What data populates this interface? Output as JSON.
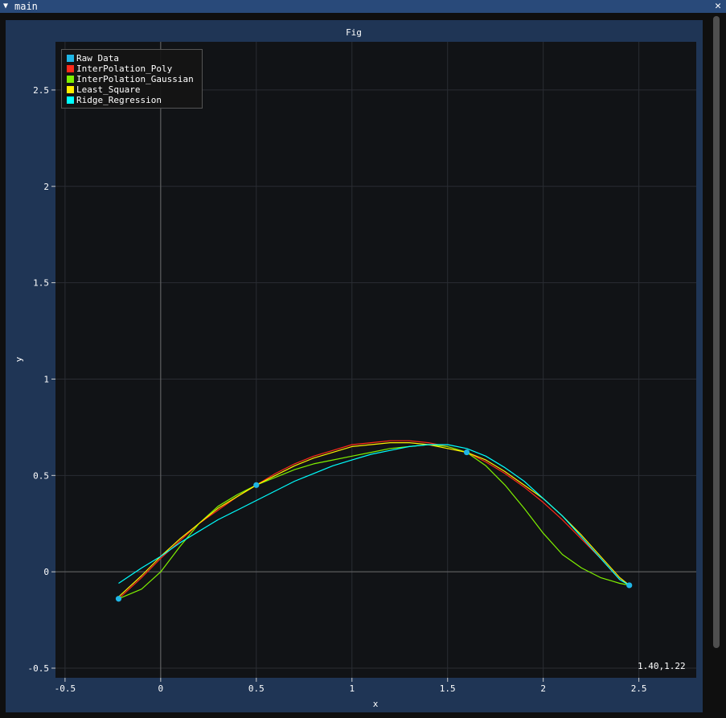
{
  "window": {
    "title": "main",
    "collapse_icon": "triangle-down-icon",
    "close_icon": "close-icon"
  },
  "mouse_readout": "1.40,1.22",
  "colors": {
    "raw_data": "#1fb6e6",
    "poly": "#ff2a1a",
    "gaussian": "#7ff000",
    "least_square": "#ffee00",
    "ridge": "#00ffff",
    "plot_bg": "#111316",
    "frame_bg": "#1f3555"
  },
  "chart_data": {
    "type": "line",
    "title": "Fig",
    "xlabel": "x",
    "ylabel": "y",
    "xlim": [
      -0.55,
      2.8
    ],
    "ylim": [
      -0.55,
      2.75
    ],
    "grid": true,
    "legend_position": "top-left",
    "xticks": [
      "-0.5",
      "0",
      "0.5",
      "1",
      "1.5",
      "2",
      "2.5"
    ],
    "yticks": [
      "-0.5",
      "0",
      "0.5",
      "1",
      "1.5",
      "2",
      "2.5"
    ],
    "points": {
      "name": "Raw Data",
      "x": [
        -0.22,
        0.5,
        1.6,
        2.45
      ],
      "y": [
        -0.14,
        0.45,
        0.62,
        -0.07
      ]
    },
    "series": [
      {
        "name": "InterPolation_Poly",
        "colorKey": "poly",
        "x": [
          -0.22,
          -0.1,
          0.0,
          0.1,
          0.2,
          0.3,
          0.4,
          0.5,
          0.6,
          0.7,
          0.8,
          0.9,
          1.0,
          1.1,
          1.2,
          1.3,
          1.4,
          1.5,
          1.6,
          1.7,
          1.8,
          1.9,
          2.0,
          2.1,
          2.2,
          2.3,
          2.4,
          2.45
        ],
        "y": [
          -0.14,
          -0.03,
          0.07,
          0.16,
          0.25,
          0.32,
          0.39,
          0.45,
          0.51,
          0.56,
          0.6,
          0.63,
          0.66,
          0.67,
          0.68,
          0.68,
          0.67,
          0.65,
          0.62,
          0.57,
          0.51,
          0.44,
          0.36,
          0.27,
          0.17,
          0.07,
          -0.04,
          -0.07
        ]
      },
      {
        "name": "InterPolation_Gaussian",
        "colorKey": "gaussian",
        "x": [
          -0.22,
          -0.1,
          0.0,
          0.1,
          0.2,
          0.3,
          0.4,
          0.5,
          0.6,
          0.7,
          0.8,
          0.9,
          1.0,
          1.1,
          1.2,
          1.3,
          1.4,
          1.5,
          1.6,
          1.7,
          1.8,
          1.9,
          2.0,
          2.1,
          2.2,
          2.3,
          2.4,
          2.45
        ],
        "y": [
          -0.14,
          -0.09,
          0.0,
          0.13,
          0.25,
          0.34,
          0.4,
          0.45,
          0.49,
          0.53,
          0.56,
          0.58,
          0.6,
          0.62,
          0.64,
          0.65,
          0.66,
          0.65,
          0.62,
          0.55,
          0.45,
          0.33,
          0.2,
          0.09,
          0.02,
          -0.03,
          -0.06,
          -0.07
        ]
      },
      {
        "name": "Least_Square",
        "colorKey": "least_square",
        "x": [
          -0.22,
          -0.1,
          0.0,
          0.1,
          0.2,
          0.3,
          0.4,
          0.5,
          0.6,
          0.7,
          0.8,
          0.9,
          1.0,
          1.1,
          1.2,
          1.3,
          1.4,
          1.5,
          1.6,
          1.7,
          1.8,
          1.9,
          2.0,
          2.1,
          2.2,
          2.3,
          2.4,
          2.45
        ],
        "y": [
          -0.13,
          -0.02,
          0.08,
          0.17,
          0.25,
          0.33,
          0.39,
          0.45,
          0.5,
          0.55,
          0.59,
          0.62,
          0.65,
          0.66,
          0.67,
          0.67,
          0.66,
          0.64,
          0.62,
          0.58,
          0.52,
          0.45,
          0.38,
          0.29,
          0.19,
          0.08,
          -0.03,
          -0.07
        ]
      },
      {
        "name": "Ridge_Regression",
        "colorKey": "ridge",
        "x": [
          -0.22,
          -0.1,
          0.0,
          0.1,
          0.2,
          0.3,
          0.4,
          0.5,
          0.6,
          0.7,
          0.8,
          0.9,
          1.0,
          1.1,
          1.2,
          1.3,
          1.4,
          1.5,
          1.6,
          1.7,
          1.8,
          1.9,
          2.0,
          2.1,
          2.2,
          2.3,
          2.4,
          2.45
        ],
        "y": [
          -0.06,
          0.02,
          0.08,
          0.15,
          0.21,
          0.27,
          0.32,
          0.37,
          0.42,
          0.47,
          0.51,
          0.55,
          0.58,
          0.61,
          0.63,
          0.65,
          0.66,
          0.66,
          0.64,
          0.6,
          0.54,
          0.47,
          0.38,
          0.29,
          0.18,
          0.07,
          -0.04,
          -0.07
        ]
      }
    ]
  }
}
